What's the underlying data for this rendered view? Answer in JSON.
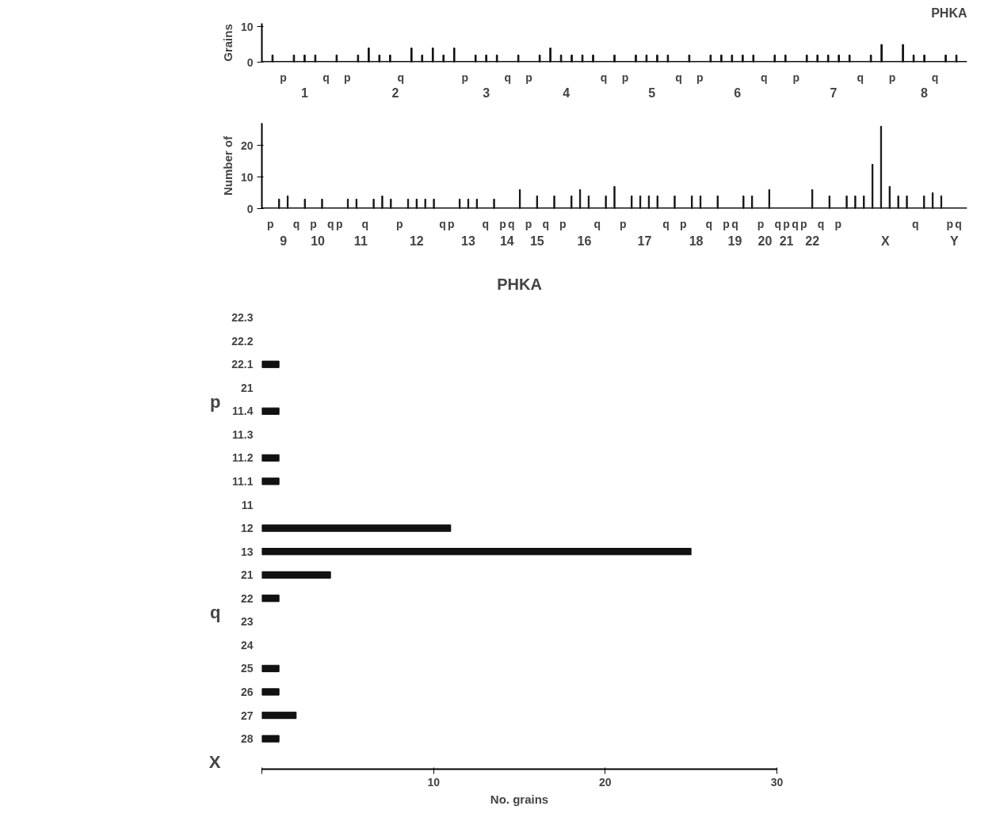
{
  "chart_data": [
    {
      "type": "bar",
      "title": "PHKA",
      "ylabel": "Grains",
      "categories": [
        null,
        "p",
        null,
        null,
        null,
        "q",
        null,
        "p",
        null,
        null,
        null,
        null,
        "q",
        null,
        null,
        null,
        null,
        null,
        "p",
        null,
        null,
        null,
        "q",
        null,
        "p",
        null,
        null,
        null,
        null,
        null,
        null,
        "q",
        null,
        "p",
        null,
        null,
        null,
        null,
        "q",
        null,
        "p",
        null,
        null,
        null,
        null,
        null,
        "q",
        null,
        null,
        "p",
        null,
        null,
        null,
        null,
        null,
        "q",
        null,
        null,
        "p",
        null,
        null,
        null,
        "q",
        null,
        null
      ],
      "values": [
        2,
        null,
        2,
        2,
        2,
        null,
        2,
        null,
        2,
        4,
        2,
        2,
        null,
        4,
        2,
        4,
        2,
        4,
        null,
        2,
        2,
        2,
        null,
        2,
        null,
        2,
        4,
        2,
        2,
        2,
        2,
        null,
        2,
        null,
        2,
        2,
        2,
        2,
        null,
        2,
        null,
        2,
        2,
        2,
        2,
        2,
        null,
        2,
        2,
        null,
        2,
        2,
        2,
        2,
        2,
        null,
        2,
        5,
        null,
        5,
        2,
        2,
        null,
        2,
        2
      ],
      "color": "#111111",
      "ylim": [
        0,
        11
      ],
      "yticks": [
        0,
        10
      ],
      "annotations": [
        "1",
        "2",
        "3",
        "4",
        "5",
        "6",
        "7",
        "8"
      ],
      "grid": false
    },
    {
      "type": "bar",
      "ylabel": "Number of",
      "categories": [
        "p",
        null,
        null,
        "q",
        null,
        "p",
        null,
        "q",
        "p",
        null,
        null,
        "q",
        null,
        null,
        null,
        "p",
        null,
        null,
        null,
        null,
        "q",
        "p",
        null,
        null,
        null,
        "q",
        null,
        "p",
        "q",
        null,
        "p",
        null,
        "q",
        null,
        "p",
        null,
        null,
        null,
        "q",
        null,
        null,
        "p",
        null,
        null,
        null,
        null,
        "q",
        null,
        "p",
        null,
        null,
        "q",
        null,
        "p",
        "q",
        null,
        null,
        "p",
        null,
        "q",
        "p",
        "q",
        "p",
        null,
        "q",
        null,
        "p",
        null,
        null,
        null,
        null,
        null,
        null,
        null,
        null,
        "q",
        null,
        null,
        null,
        "p",
        "q"
      ],
      "values": [
        null,
        3,
        4,
        null,
        3,
        null,
        3,
        null,
        null,
        3,
        3,
        null,
        3,
        4,
        3,
        null,
        3,
        3,
        3,
        3,
        null,
        null,
        3,
        3,
        3,
        null,
        3,
        null,
        null,
        6,
        null,
        4,
        null,
        4,
        null,
        4,
        6,
        4,
        null,
        4,
        7,
        null,
        4,
        4,
        4,
        4,
        null,
        4,
        null,
        4,
        4,
        null,
        4,
        null,
        null,
        4,
        4,
        null,
        6,
        null,
        null,
        null,
        null,
        6,
        null,
        4,
        null,
        4,
        4,
        4,
        14,
        26,
        7,
        4,
        4,
        null,
        4,
        5,
        4,
        null,
        null
      ],
      "color": "#111111",
      "ylim": [
        0,
        27
      ],
      "yticks": [
        0,
        10,
        20
      ],
      "annotations": [
        "9",
        "10",
        "11",
        "12",
        "13",
        "14",
        "15",
        "16",
        "17",
        "18",
        "19",
        "20",
        "21",
        "22",
        "X",
        "Y"
      ],
      "grid": false
    },
    {
      "type": "bar",
      "orientation": "horizontal",
      "title": "PHKA",
      "xlabel": "No. grains",
      "categories": [
        "22.3",
        "22.2",
        "22.1",
        "21",
        "11.4",
        "11.3",
        "11.2",
        "11.1",
        "11",
        "12",
        "13",
        "21",
        "22",
        "23",
        "24",
        "25",
        "26",
        "27",
        "28"
      ],
      "values": [
        null,
        null,
        1,
        null,
        1,
        null,
        1,
        1,
        null,
        11,
        25,
        4,
        1,
        null,
        null,
        1,
        1,
        2,
        1
      ],
      "color": "#111111",
      "xlim": [
        0,
        30
      ],
      "xticks": [
        {
          "value": 0,
          "label": null
        },
        10,
        20,
        30
      ],
      "annotations": [
        "p",
        "q",
        "X"
      ],
      "grid": false
    }
  ]
}
